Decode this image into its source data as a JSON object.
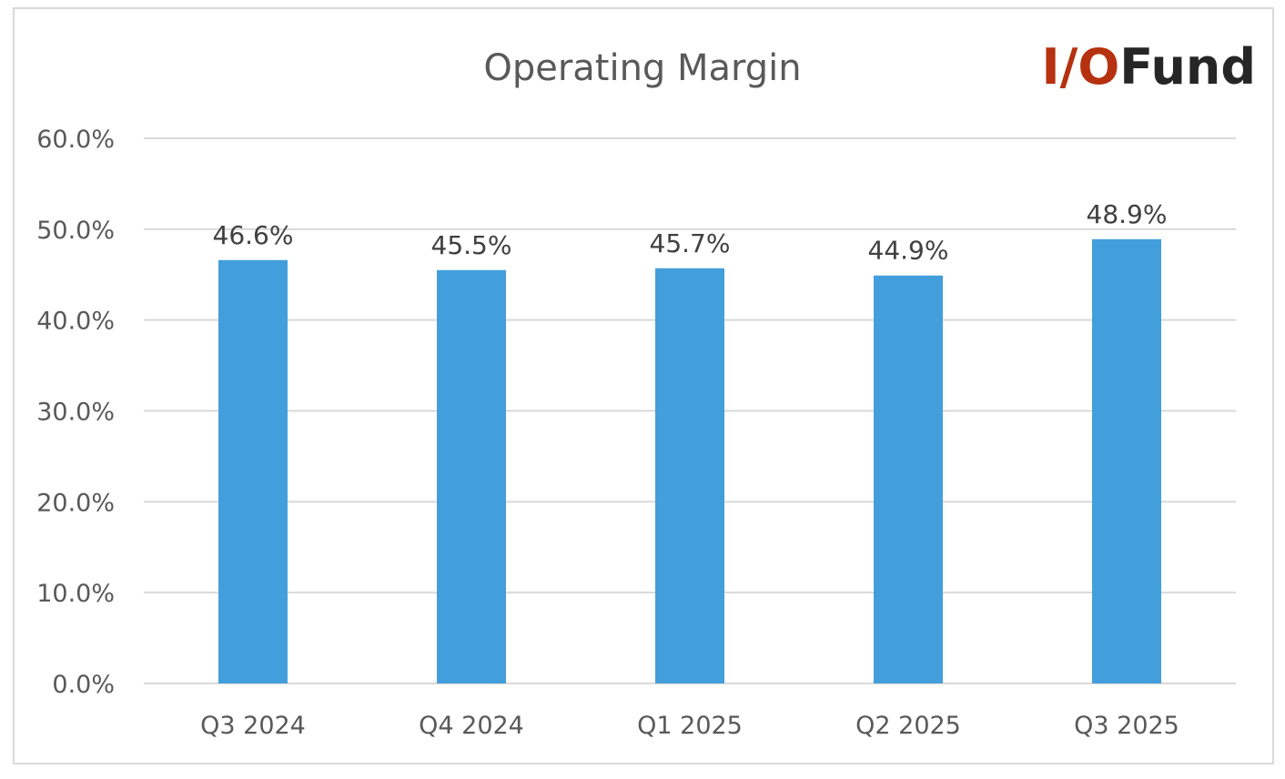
{
  "logo": {
    "part1": "I/O",
    "part2": "Fund",
    "part1_color": "#B5310F",
    "part2_color": "#262626"
  },
  "chart_data": {
    "type": "bar",
    "title": "Operating Margin",
    "categories": [
      "Q3 2024",
      "Q4 2024",
      "Q1 2025",
      "Q2 2025",
      "Q3 2025"
    ],
    "values": [
      46.6,
      45.5,
      45.7,
      44.9,
      48.9
    ],
    "data_labels": [
      "46.6%",
      "45.5%",
      "45.7%",
      "44.9%",
      "48.9%"
    ],
    "y_ticks": [
      0,
      10,
      20,
      30,
      40,
      50,
      60
    ],
    "y_tick_labels": [
      "0.0%",
      "10.0%",
      "20.0%",
      "30.0%",
      "40.0%",
      "50.0%",
      "60.0%"
    ],
    "ylim": [
      0,
      60
    ],
    "grid": true,
    "legend": "none",
    "bar_color": "#439FDC",
    "grid_color": "#D9D9D9"
  }
}
